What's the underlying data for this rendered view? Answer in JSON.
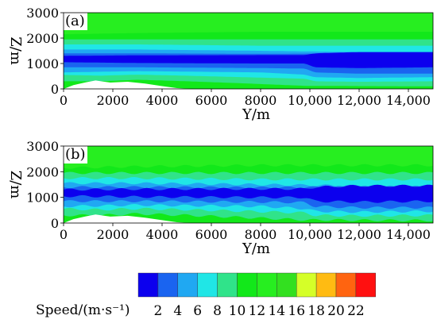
{
  "chart_data": [
    {
      "type": "heatmap",
      "panel_label": "(a)",
      "xlabel": "Y/m",
      "ylabel": "Z/m",
      "xlim": [
        0,
        15000
      ],
      "ylim": [
        0,
        3000
      ],
      "xticks": [
        "0",
        "2000",
        "4000",
        "6000",
        "8000",
        "10,000",
        "12,000",
        "14,000"
      ],
      "xtick_values": [
        0,
        2000,
        4000,
        6000,
        8000,
        10000,
        12000,
        14000
      ],
      "yticks": [
        "0",
        "1000",
        "2000",
        "3000"
      ],
      "ytick_values": [
        0,
        1000,
        2000,
        3000
      ],
      "field": {
        "terrain": [
          [
            0,
            0
          ],
          [
            400,
            150
          ],
          [
            900,
            260
          ],
          [
            1300,
            330
          ],
          [
            1900,
            250
          ],
          [
            2600,
            280
          ],
          [
            3300,
            210
          ],
          [
            4000,
            110
          ],
          [
            4600,
            30
          ],
          [
            5200,
            0
          ]
        ],
        "layers": [
          {
            "speed": 12,
            "points": [
              [
                0,
                2150
              ],
              [
                3000,
                2200
              ],
              [
                8000,
                2250
              ],
              [
                12000,
                2250
              ],
              [
                15000,
                2250
              ]
            ]
          },
          {
            "speed": 10,
            "points": [
              [
                0,
                1950
              ],
              [
                3000,
                1950
              ],
              [
                8000,
                1950
              ],
              [
                12000,
                1950
              ],
              [
                15000,
                1950
              ]
            ]
          },
          {
            "speed": 8,
            "points": [
              [
                0,
                1750
              ],
              [
                3000,
                1750
              ],
              [
                8000,
                1700
              ],
              [
                12000,
                1700
              ],
              [
                15000,
                1700
              ]
            ]
          },
          {
            "speed": 6,
            "points": [
              [
                0,
                1550
              ],
              [
                3000,
                1550
              ],
              [
                8000,
                1500
              ],
              [
                12000,
                1450
              ],
              [
                15000,
                1450
              ]
            ]
          },
          {
            "speed": 4,
            "points": [
              [
                0,
                1400
              ],
              [
                3000,
                1400
              ],
              [
                8000,
                1380
              ],
              [
                12000,
                1400
              ],
              [
                15000,
                1400
              ]
            ]
          },
          {
            "speed": 2,
            "points": [
              [
                0,
                1300
              ],
              [
                3000,
                1320
              ],
              [
                8000,
                1330
              ],
              [
                9800,
                1330
              ],
              [
                10200,
                1400
              ],
              [
                12000,
                1450
              ],
              [
                15000,
                1450
              ]
            ]
          },
          {
            "speed": 4,
            "points": [
              [
                0,
                1050
              ],
              [
                3000,
                1020
              ],
              [
                8000,
                1000
              ],
              [
                9800,
                1000
              ],
              [
                10200,
                850
              ],
              [
                12000,
                820
              ],
              [
                15000,
                850
              ]
            ]
          },
          {
            "speed": 6,
            "points": [
              [
                0,
                850
              ],
              [
                3000,
                850
              ],
              [
                8000,
                820
              ],
              [
                9800,
                800
              ],
              [
                10200,
                650
              ],
              [
                12000,
                600
              ],
              [
                15000,
                600
              ]
            ]
          },
          {
            "speed": 8,
            "points": [
              [
                0,
                650
              ],
              [
                3000,
                700
              ],
              [
                8000,
                650
              ],
              [
                9800,
                560
              ],
              [
                10200,
                460
              ],
              [
                12000,
                430
              ],
              [
                15000,
                460
              ]
            ]
          },
          {
            "speed": 10,
            "points": [
              [
                0,
                550
              ],
              [
                1500,
                520
              ],
              [
                3000,
                560
              ],
              [
                5000,
                520
              ],
              [
                7000,
                470
              ],
              [
                9800,
                400
              ],
              [
                10200,
                300
              ],
              [
                12000,
                280
              ],
              [
                15000,
                300
              ]
            ]
          },
          {
            "speed": 12,
            "points": [
              [
                0,
                300
              ],
              [
                1500,
                300
              ],
              [
                3000,
                360
              ],
              [
                5000,
                300
              ],
              [
                7000,
                230
              ],
              [
                9800,
                120
              ],
              [
                11000,
                120
              ],
              [
                12000,
                110
              ],
              [
                15000,
                100
              ]
            ]
          }
        ]
      }
    },
    {
      "type": "heatmap",
      "panel_label": "(b)",
      "xlabel": "Y/m",
      "ylabel": "Z/m",
      "xlim": [
        0,
        15000
      ],
      "ylim": [
        0,
        3000
      ],
      "xticks": [
        "0",
        "2000",
        "4000",
        "6000",
        "8000",
        "10,000",
        "12,000",
        "14,000"
      ],
      "xtick_values": [
        0,
        2000,
        4000,
        6000,
        8000,
        10000,
        12000,
        14000
      ],
      "yticks": [
        "0",
        "1000",
        "2000",
        "3000"
      ],
      "ytick_values": [
        0,
        1000,
        2000,
        3000
      ],
      "field": {
        "terrain": [
          [
            0,
            0
          ],
          [
            400,
            150
          ],
          [
            900,
            260
          ],
          [
            1300,
            330
          ],
          [
            1900,
            250
          ],
          [
            2600,
            280
          ],
          [
            3300,
            210
          ],
          [
            4000,
            110
          ],
          [
            4600,
            30
          ],
          [
            5200,
            0
          ]
        ],
        "layers": [
          {
            "speed": 12,
            "points": [
              [
                0,
                2150
              ],
              [
                3000,
                2200
              ],
              [
                8000,
                2250
              ],
              [
                12000,
                2250
              ],
              [
                15000,
                2250
              ]
            ]
          },
          {
            "speed": 10,
            "points": [
              [
                0,
                1950
              ],
              [
                3000,
                1950
              ],
              [
                8000,
                1950
              ],
              [
                12000,
                1950
              ],
              [
                15000,
                1950
              ]
            ]
          },
          {
            "speed": 8,
            "points": [
              [
                0,
                1750
              ],
              [
                3000,
                1750
              ],
              [
                8000,
                1700
              ],
              [
                12000,
                1700
              ],
              [
                15000,
                1700
              ]
            ]
          },
          {
            "speed": 6,
            "points": [
              [
                0,
                1550
              ],
              [
                3000,
                1550
              ],
              [
                8000,
                1500
              ],
              [
                12000,
                1450
              ],
              [
                15000,
                1450
              ]
            ]
          },
          {
            "speed": 4,
            "points": [
              [
                0,
                1400
              ],
              [
                3000,
                1400
              ],
              [
                8000,
                1380
              ],
              [
                12000,
                1400
              ],
              [
                15000,
                1400
              ]
            ]
          },
          {
            "speed": 2,
            "points": [
              [
                0,
                1300
              ],
              [
                3000,
                1320
              ],
              [
                8000,
                1330
              ],
              [
                9800,
                1330
              ],
              [
                10200,
                1400
              ],
              [
                12000,
                1450
              ],
              [
                15000,
                1450
              ]
            ]
          },
          {
            "speed": 4,
            "points": [
              [
                0,
                1050
              ],
              [
                3000,
                1020
              ],
              [
                8000,
                1000
              ],
              [
                9800,
                1000
              ],
              [
                10200,
                850
              ],
              [
                12000,
                820
              ],
              [
                15000,
                850
              ]
            ]
          },
          {
            "speed": 6,
            "points": [
              [
                0,
                850
              ],
              [
                3000,
                850
              ],
              [
                8000,
                820
              ],
              [
                9800,
                800
              ],
              [
                10200,
                650
              ],
              [
                12000,
                600
              ],
              [
                15000,
                600
              ]
            ]
          },
          {
            "speed": 8,
            "points": [
              [
                0,
                650
              ],
              [
                3000,
                700
              ],
              [
                8000,
                650
              ],
              [
                9800,
                560
              ],
              [
                10200,
                460
              ],
              [
                12000,
                430
              ],
              [
                15000,
                460
              ]
            ]
          },
          {
            "speed": 10,
            "points": [
              [
                0,
                550
              ],
              [
                1500,
                520
              ],
              [
                3000,
                560
              ],
              [
                5000,
                520
              ],
              [
                7000,
                470
              ],
              [
                9800,
                400
              ],
              [
                10200,
                300
              ],
              [
                12000,
                280
              ],
              [
                15000,
                300
              ]
            ]
          },
          {
            "speed": 12,
            "points": [
              [
                0,
                300
              ],
              [
                1500,
                300
              ],
              [
                3000,
                360
              ],
              [
                5000,
                300
              ],
              [
                7000,
                230
              ],
              [
                9800,
                120
              ],
              [
                11000,
                120
              ],
              [
                12000,
                110
              ],
              [
                15000,
                100
              ]
            ]
          }
        ]
      }
    }
  ],
  "colorbar": {
    "label": "Speed/(m·s⁻¹)",
    "ticks": [
      "2",
      "4",
      "6",
      "8",
      "10",
      "12",
      "14",
      "16",
      "18",
      "20",
      "22"
    ],
    "colors": [
      "#0c00ee",
      "#1a64f0",
      "#20a8f2",
      "#20e6e6",
      "#30e38a",
      "#12e81a",
      "#27ee20",
      "#33e020",
      "#d5ff28",
      "#ffbb12",
      "#ff6410",
      "#ff1010"
    ]
  }
}
